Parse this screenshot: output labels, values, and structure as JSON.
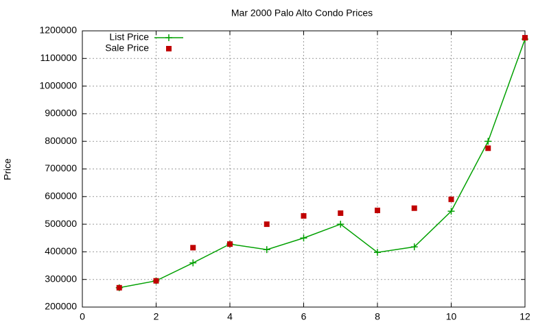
{
  "chart_data": {
    "type": "line",
    "title": "Mar 2000 Palo Alto Condo Prices",
    "y_label": "Price",
    "x": [
      1,
      2,
      3,
      4,
      5,
      6,
      7,
      8,
      9,
      10,
      11,
      12
    ],
    "series": [
      {
        "name": "List Price",
        "color": "#00a000",
        "mode": "lines+markers",
        "values": [
          270000,
          295000,
          360000,
          428000,
          408000,
          450000,
          500000,
          398000,
          418000,
          547000,
          800000,
          1170000
        ]
      },
      {
        "name": "Sale Price",
        "color": "#c00000",
        "mode": "markers",
        "values": [
          270000,
          295000,
          415000,
          428000,
          500000,
          530000,
          540000,
          550000,
          558000,
          590000,
          775000,
          1175000
        ]
      }
    ],
    "xlim": [
      0,
      12
    ],
    "xticks": [
      0,
      2,
      4,
      6,
      8,
      10,
      12
    ],
    "ylim": [
      200000,
      1200000
    ],
    "yticks": [
      200000,
      300000,
      400000,
      500000,
      600000,
      700000,
      800000,
      900000,
      1000000,
      1100000,
      1200000
    ],
    "grid": true,
    "legend": "top-left"
  }
}
